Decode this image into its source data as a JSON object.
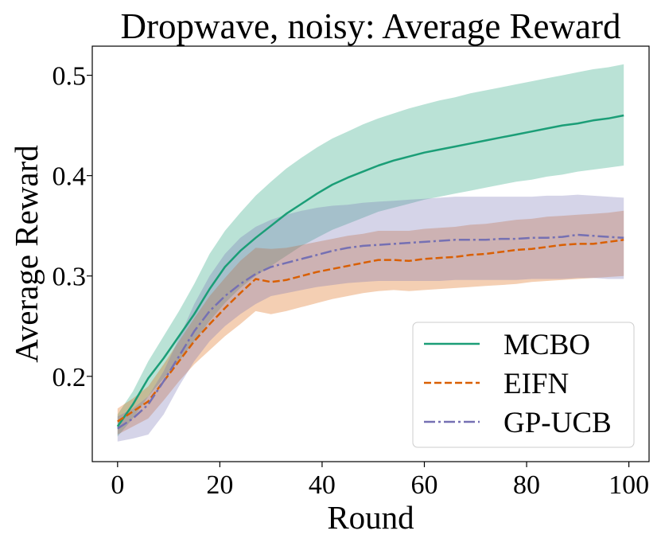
{
  "chart_data": {
    "type": "line",
    "title": "Dropwave, noisy: Average Reward",
    "xlabel": "Round",
    "ylabel": "Average Reward",
    "xlim": [
      -4.95,
      103.95
    ],
    "ylim": [
      0.115,
      0.529
    ],
    "grid": false,
    "legend_position": "lower-right",
    "xticks": {
      "values": [
        0,
        20,
        40,
        60,
        80,
        100
      ],
      "labels": [
        "0",
        "20",
        "40",
        "60",
        "80",
        "100"
      ]
    },
    "yticks": {
      "values": [
        0.2,
        0.3,
        0.4,
        0.5
      ],
      "labels": [
        "0.2",
        "0.3",
        "0.4",
        "0.5"
      ]
    },
    "x": [
      0,
      3,
      6,
      9,
      12,
      15,
      18,
      21,
      24,
      27,
      30,
      33,
      36,
      39,
      42,
      45,
      48,
      51,
      54,
      57,
      60,
      63,
      66,
      69,
      72,
      75,
      78,
      81,
      84,
      87,
      90,
      93,
      96,
      99
    ],
    "series": [
      {
        "name": "MCBO",
        "color": "#1b9e77",
        "linestyle": "solid",
        "mean": [
          0.15,
          0.172,
          0.198,
          0.218,
          0.24,
          0.262,
          0.287,
          0.309,
          0.325,
          0.338,
          0.35,
          0.362,
          0.372,
          0.382,
          0.391,
          0.398,
          0.404,
          0.41,
          0.415,
          0.419,
          0.423,
          0.426,
          0.429,
          0.432,
          0.435,
          0.438,
          0.441,
          0.444,
          0.447,
          0.45,
          0.452,
          0.455,
          0.457,
          0.46
        ],
        "upper": [
          0.162,
          0.185,
          0.215,
          0.24,
          0.265,
          0.292,
          0.322,
          0.345,
          0.363,
          0.38,
          0.394,
          0.407,
          0.418,
          0.428,
          0.437,
          0.444,
          0.451,
          0.457,
          0.462,
          0.467,
          0.471,
          0.475,
          0.478,
          0.482,
          0.485,
          0.488,
          0.491,
          0.494,
          0.497,
          0.5,
          0.503,
          0.506,
          0.508,
          0.511
        ],
        "lower": [
          0.14,
          0.158,
          0.18,
          0.198,
          0.215,
          0.235,
          0.255,
          0.273,
          0.288,
          0.3,
          0.31,
          0.32,
          0.33,
          0.338,
          0.346,
          0.352,
          0.358,
          0.364,
          0.368,
          0.372,
          0.376,
          0.379,
          0.382,
          0.385,
          0.388,
          0.391,
          0.394,
          0.396,
          0.399,
          0.401,
          0.404,
          0.406,
          0.408,
          0.41
        ]
      },
      {
        "name": "EIFN",
        "color": "#d95f02",
        "linestyle": "dashed",
        "mean": [
          0.155,
          0.165,
          0.175,
          0.195,
          0.215,
          0.235,
          0.252,
          0.268,
          0.283,
          0.297,
          0.294,
          0.296,
          0.3,
          0.304,
          0.307,
          0.31,
          0.313,
          0.316,
          0.316,
          0.315,
          0.317,
          0.318,
          0.319,
          0.321,
          0.322,
          0.324,
          0.326,
          0.327,
          0.329,
          0.331,
          0.332,
          0.332,
          0.334,
          0.336
        ],
        "upper": [
          0.168,
          0.178,
          0.19,
          0.212,
          0.235,
          0.258,
          0.28,
          0.298,
          0.315,
          0.328,
          0.327,
          0.328,
          0.331,
          0.334,
          0.337,
          0.34,
          0.342,
          0.345,
          0.345,
          0.345,
          0.347,
          0.348,
          0.349,
          0.351,
          0.352,
          0.354,
          0.356,
          0.357,
          0.359,
          0.36,
          0.361,
          0.362,
          0.363,
          0.365
        ],
        "lower": [
          0.142,
          0.15,
          0.158,
          0.176,
          0.195,
          0.212,
          0.226,
          0.24,
          0.252,
          0.265,
          0.262,
          0.265,
          0.269,
          0.273,
          0.277,
          0.28,
          0.283,
          0.285,
          0.286,
          0.285,
          0.286,
          0.287,
          0.288,
          0.289,
          0.29,
          0.291,
          0.292,
          0.294,
          0.295,
          0.296,
          0.297,
          0.298,
          0.299,
          0.3
        ]
      },
      {
        "name": "GP-UCB",
        "color": "#7570b3",
        "linestyle": "dashdot",
        "mean": [
          0.148,
          0.158,
          0.172,
          0.195,
          0.22,
          0.245,
          0.265,
          0.28,
          0.292,
          0.302,
          0.309,
          0.313,
          0.317,
          0.321,
          0.325,
          0.328,
          0.33,
          0.331,
          0.332,
          0.333,
          0.334,
          0.335,
          0.336,
          0.336,
          0.336,
          0.337,
          0.337,
          0.338,
          0.338,
          0.339,
          0.341,
          0.34,
          0.339,
          0.338
        ],
        "upper": [
          0.16,
          0.168,
          0.18,
          0.205,
          0.238,
          0.272,
          0.3,
          0.322,
          0.338,
          0.349,
          0.356,
          0.361,
          0.365,
          0.368,
          0.37,
          0.371,
          0.373,
          0.374,
          0.375,
          0.376,
          0.377,
          0.378,
          0.379,
          0.379,
          0.379,
          0.379,
          0.379,
          0.379,
          0.38,
          0.38,
          0.381,
          0.38,
          0.379,
          0.378
        ],
        "lower": [
          0.135,
          0.138,
          0.142,
          0.162,
          0.19,
          0.215,
          0.235,
          0.25,
          0.262,
          0.272,
          0.28,
          0.283,
          0.286,
          0.289,
          0.291,
          0.293,
          0.294,
          0.295,
          0.295,
          0.295,
          0.295,
          0.295,
          0.296,
          0.296,
          0.296,
          0.296,
          0.296,
          0.297,
          0.297,
          0.297,
          0.298,
          0.298,
          0.297,
          0.297
        ]
      }
    ]
  }
}
